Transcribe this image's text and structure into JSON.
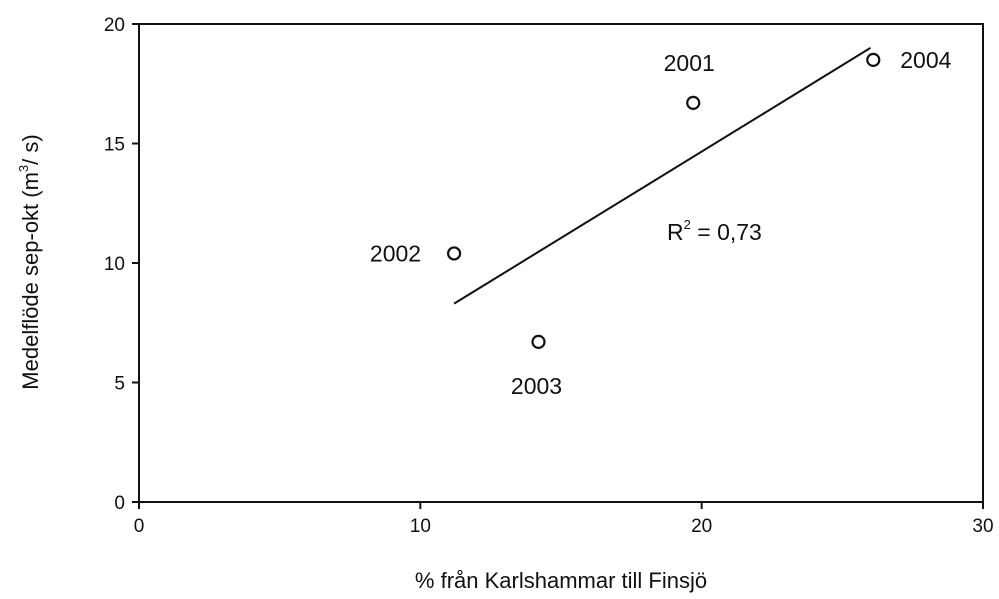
{
  "chart_data": {
    "type": "scatter",
    "xlabel": "% från Karlshammar till Finsjö",
    "ylabel_main": "Medelflöde sep-okt (m",
    "ylabel_sup": "3",
    "ylabel_end": "/ s)",
    "xlim": [
      0,
      30
    ],
    "ylim": [
      0,
      20
    ],
    "xticks": [
      0,
      10,
      20,
      30
    ],
    "yticks": [
      0,
      5,
      10,
      15,
      20
    ],
    "grid": false,
    "series": [
      {
        "points": [
          {
            "x": 19.7,
            "y": 16.7,
            "label": "2001"
          },
          {
            "x": 11.2,
            "y": 10.4,
            "label": "2002"
          },
          {
            "x": 14.2,
            "y": 6.7,
            "label": "2003"
          },
          {
            "x": 26.1,
            "y": 18.5,
            "label": "2004"
          }
        ]
      }
    ],
    "trendline": {
      "x1": 11.2,
      "y1": 8.3,
      "x2": 26.0,
      "y2": 19.0
    },
    "annotation": {
      "main": "R",
      "sup": "2",
      "rest": " = 0,73"
    }
  }
}
